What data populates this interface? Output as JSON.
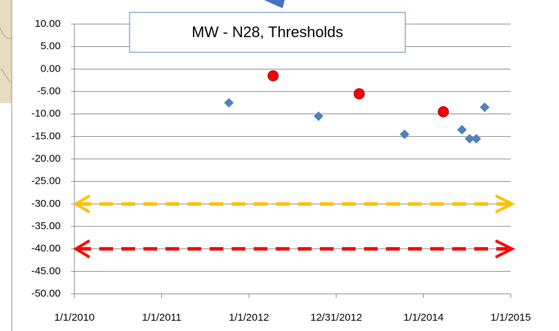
{
  "chart_data": {
    "type": "scatter",
    "title": "MW - N28, Thresholds",
    "series": [
      {
        "color": "#4f81bd",
        "marker": "diamond",
        "x": [
          40825,
          41200,
          41560,
          41800,
          41832,
          41860,
          41895
        ],
        "values": [
          -7.5,
          -10.5,
          -14.5,
          -13.5,
          -15.5,
          -15.5,
          -8.5
        ]
      },
      {
        "color": "#ff0000",
        "marker": "circle",
        "x": [
          41010,
          41370,
          41722
        ],
        "values": [
          -1.5,
          -5.5,
          -9.5
        ]
      }
    ],
    "reference_lines": [
      {
        "value": -30,
        "color": "#ffc000"
      },
      {
        "value": -40,
        "color": "#ff0000"
      }
    ],
    "xlim": [
      40179,
      42004
    ],
    "xticks": [
      {
        "value": 40179,
        "label": "1/1/2010"
      },
      {
        "value": 40544,
        "label": "1/1/2011"
      },
      {
        "value": 40909,
        "label": "1/1/2012"
      },
      {
        "value": 41274,
        "label": "12/31/2012"
      },
      {
        "value": 41639,
        "label": "1/1/2014"
      },
      {
        "value": 42004,
        "label": "1/1/2015"
      }
    ],
    "ylim": [
      -50,
      10
    ],
    "yticks": [
      {
        "value": 10,
        "label": "10.00"
      },
      {
        "value": 5,
        "label": "5.00"
      },
      {
        "value": 0,
        "label": "0.00"
      },
      {
        "value": -5,
        "label": "-5.00"
      },
      {
        "value": -10,
        "label": "-10.00"
      },
      {
        "value": -15,
        "label": "-15.00"
      },
      {
        "value": -20,
        "label": "-20.00"
      },
      {
        "value": -25,
        "label": "-25.00"
      },
      {
        "value": -30,
        "label": "-30.00"
      },
      {
        "value": -35,
        "label": "-35.00"
      },
      {
        "value": -40,
        "label": "-40.00"
      },
      {
        "value": -45,
        "label": "-45.00"
      },
      {
        "value": -50,
        "label": "-50.00"
      }
    ],
    "grid": true
  }
}
